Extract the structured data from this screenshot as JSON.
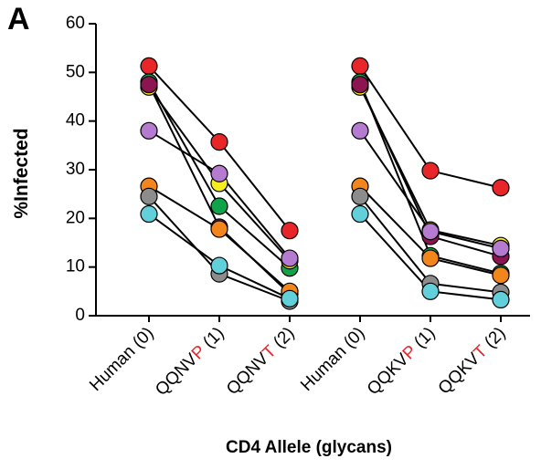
{
  "panel_label": "A",
  "chart_data": {
    "type": "paired-dot",
    "ylabel": "%Infected",
    "xlabel": "CD4 Allele (glycans)",
    "ylim": [
      0,
      60
    ],
    "yticks": [
      0,
      10,
      20,
      30,
      40,
      50,
      60
    ],
    "highlight_color": "#e8262a",
    "groups": [
      {
        "categories": [
          [
            "Human (0)"
          ],
          [
            "QQNV",
            "P",
            " (1)"
          ],
          [
            "QQNV",
            "T",
            " (2)"
          ]
        ],
        "series": [
          {
            "color": "#e8262a",
            "values": [
              51.3,
              35.7,
              17.5
            ]
          },
          {
            "color": "#11a34a",
            "values": [
              48,
              22.5,
              9.8
            ]
          },
          {
            "color": "#f5ee1f",
            "values": [
              47,
              27.2,
              11.3
            ]
          },
          {
            "color": "#8c1450",
            "values": [
              47.5,
              18.2,
              4.5
            ]
          },
          {
            "color": "#b57bd1",
            "values": [
              38,
              29.2,
              11.8
            ]
          },
          {
            "color": "#f2851b",
            "values": [
              26.6,
              17.8,
              5
            ]
          },
          {
            "color": "#8c8c8c",
            "values": [
              24.5,
              8.6,
              3
            ]
          },
          {
            "color": "#62d0db",
            "values": [
              20.9,
              10.3,
              3.5
            ]
          }
        ]
      },
      {
        "categories": [
          [
            "Human (0)"
          ],
          [
            "QQKV",
            "P",
            " (1)"
          ],
          [
            "QQKV",
            "T",
            " (2)"
          ]
        ],
        "series": [
          {
            "color": "#e8262a",
            "values": [
              51.3,
              29.8,
              26.3
            ]
          },
          {
            "color": "#11a34a",
            "values": [
              48,
              12.3,
              8.7
            ]
          },
          {
            "color": "#f5ee1f",
            "values": [
              47,
              17.6,
              14.4
            ]
          },
          {
            "color": "#8c1450",
            "values": [
              47.5,
              16.3,
              12.2
            ]
          },
          {
            "color": "#b57bd1",
            "values": [
              38,
              17.3,
              13.8
            ]
          },
          {
            "color": "#f2851b",
            "values": [
              26.6,
              11.8,
              8.3
            ]
          },
          {
            "color": "#8c8c8c",
            "values": [
              24.5,
              6.6,
              4.8
            ]
          },
          {
            "color": "#62d0db",
            "values": [
              20.9,
              5,
              3.3
            ]
          }
        ]
      }
    ]
  }
}
